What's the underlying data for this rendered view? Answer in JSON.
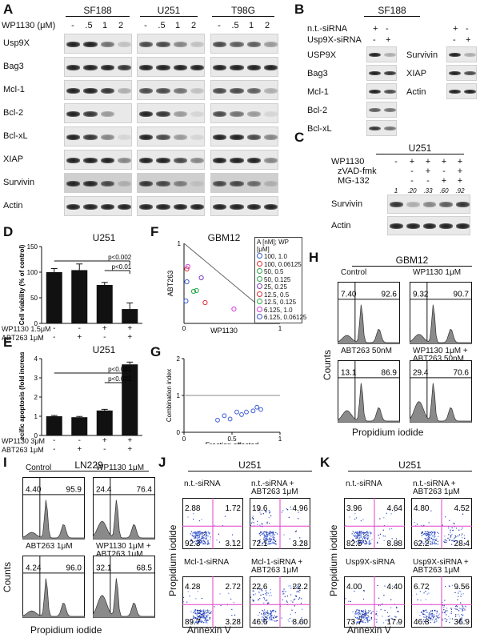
{
  "panels": {
    "A": {
      "letter": "A",
      "cell_lines": [
        "SF188",
        "U251",
        "T98G"
      ],
      "dose_label": "WP1130 (μM)",
      "doses": [
        "-",
        ".5",
        "1",
        "2"
      ],
      "proteins": [
        "Usp9X",
        "Bag3",
        "Mcl-1",
        "Bcl-2",
        "Bcl-xL",
        "XIAP",
        "Survivin",
        "Actin"
      ]
    },
    "B": {
      "letter": "B",
      "title": "SF188",
      "cond1": "n.t.-siRNA",
      "cond2": "Usp9X-siRNA",
      "cond1_signs": [
        "+",
        "-"
      ],
      "cond2_signs": [
        "-",
        "+"
      ],
      "left_proteins": [
        "USP9X",
        "Bag3",
        "Mcl-1",
        "Bcl-2",
        "Bcl-xL"
      ],
      "right_proteins": [
        "Survivin",
        "XIAP",
        "Actin"
      ]
    },
    "C": {
      "letter": "C",
      "title": "U251",
      "treatments": [
        {
          "label": "WP1130",
          "signs": [
            "-",
            "+",
            "+",
            "+",
            "+"
          ]
        },
        {
          "label": "zVAD-fmk",
          "signs": [
            "",
            "-",
            "+",
            "-",
            "+"
          ]
        },
        {
          "label": "MG-132",
          "signs": [
            "",
            "-",
            "-",
            "+",
            "+"
          ]
        }
      ],
      "quant": [
        "1",
        ".20",
        ".33",
        ".60",
        ".92"
      ],
      "proteins": [
        "Survivin",
        "Actin"
      ]
    },
    "D": {
      "letter": "D",
      "title": "U251",
      "ylabel": "Cell viability (% of control)",
      "yticks": [
        "0",
        "50",
        "100",
        "150"
      ],
      "pvals": [
        "p<0.002",
        "p<0.01"
      ],
      "row1_label": "WP1130 1.5μM",
      "row1_signs": [
        "-",
        "-",
        "+",
        "+"
      ],
      "row2_label": "ABT263 1μM",
      "row2_signs": [
        "-",
        "+",
        "-",
        "+"
      ]
    },
    "E": {
      "letter": "E",
      "title": "U251",
      "ylabel": "Specific apoptosis (fold increase)",
      "yticks": [
        "0",
        "1",
        "2",
        "3",
        "4"
      ],
      "pvals": [
        "p<0.001",
        "p<0.001"
      ],
      "row1_label": "WP1130 3μM",
      "row1_signs": [
        "-",
        "-",
        "+",
        "+"
      ],
      "row2_label": "ABT263 1μM",
      "row2_signs": [
        "-",
        "+",
        "-",
        "+"
      ]
    },
    "F": {
      "letter": "F",
      "title": "GBM12",
      "xlabel": "WP1130",
      "ylabel": "ABT263",
      "tick0": "0",
      "tick1": "1",
      "legend_title": "A [nM]; WP [μM]",
      "legend": [
        "100, 1.0",
        "100, 0.06125",
        "50, 0.5",
        "50, 0.125",
        "25, 0.25",
        "12.5, 0.5",
        "12.5, 0.125",
        "6.125, 1.0",
        "6.125, 0.06125"
      ]
    },
    "G": {
      "letter": "G",
      "xlabel": "Fraction affected",
      "ylabel": "Combination index",
      "xticks": [
        "0",
        "0.5",
        "1"
      ],
      "yticks": [
        "0",
        "1",
        "2"
      ]
    },
    "H": {
      "letter": "H",
      "title": "GBM12",
      "ylabel": "Counts",
      "xlabel": "Propidium iodide",
      "plots": [
        {
          "label": "Control",
          "left": "7.40",
          "right": "92.6"
        },
        {
          "label": "WP1130 1μM",
          "left": "9.32",
          "right": "90.7"
        },
        {
          "label": "ABT263 50nM",
          "left": "13.1",
          "right": "86.9"
        },
        {
          "label": "WP1130 1μM + ABT263 50nM",
          "left": "29.4",
          "right": "70.6"
        }
      ]
    },
    "I": {
      "letter": "I",
      "title": "LN229",
      "ylabel": "Counts",
      "xlabel": "Propidium iodide",
      "plots": [
        {
          "label": "Control",
          "left": "4.40",
          "right": "95.9"
        },
        {
          "label": "WP1130 1μM",
          "left": "24.4",
          "right": "76.4"
        },
        {
          "label": "ABT263 1μM",
          "left": "4.24",
          "right": "96.0"
        },
        {
          "label": "WP1130 1μM + ABT263 1μM",
          "left": "32.1",
          "right": "68.5"
        }
      ]
    },
    "J": {
      "letter": "J",
      "title": "U251",
      "ylabel": "Propidium iodide",
      "xlabel": "Annexin V",
      "plots": [
        {
          "label": "n.t.-siRNA",
          "q": [
            "2.88",
            "1.72",
            "92.3",
            "3.12"
          ]
        },
        {
          "label": "n.t.-siRNA + ABT263 1μM",
          "q": [
            "19.6",
            "4.96",
            "72.1",
            "3.28"
          ]
        },
        {
          "label": "Mcl-1-siRNA",
          "q": [
            "4.28",
            "2.72",
            "89.7",
            "3.28"
          ]
        },
        {
          "label": "Mcl-1-siRNA + ABT263 1μM",
          "q": [
            "22.6",
            "22.2",
            "46.6",
            "8.60"
          ]
        }
      ]
    },
    "K": {
      "letter": "K",
      "title": "U251",
      "ylabel": "Propidium iodide",
      "xlabel": "Annexin V",
      "plots": [
        {
          "label": "n.t.-siRNA",
          "q": [
            "3.96",
            "4.64",
            "82.5",
            "8.88"
          ]
        },
        {
          "label": "n.t.-siRNA + ABT263 1μM",
          "q": [
            "4.80",
            "4.52",
            "62.2",
            "28.4"
          ]
        },
        {
          "label": "Usp9X-siRNA",
          "q": [
            "4.00",
            "4.40",
            "73.7",
            "17.9"
          ]
        },
        {
          "label": "Usp9X-siRNA + ABT263 1μM",
          "q": [
            "6.72",
            "9.56",
            "46.8",
            "36.9"
          ]
        }
      ]
    }
  },
  "chart_data": [
    {
      "type": "bar",
      "title": "U251",
      "categories": [
        "control",
        "ABT263",
        "WP1130",
        "WP1130+ABT263"
      ],
      "values": [
        100,
        104,
        75,
        28
      ],
      "errors": [
        7,
        12,
        5,
        12
      ],
      "ylabel": "Cell viability (% of control)",
      "ylim": [
        0,
        150
      ]
    },
    {
      "type": "bar",
      "title": "U251",
      "categories": [
        "control",
        "ABT263",
        "WP1130",
        "WP1130+ABT263"
      ],
      "values": [
        1.0,
        0.95,
        1.3,
        3.7
      ],
      "errors": [
        0.04,
        0.04,
        0.06,
        0.12
      ],
      "ylabel": "Specific apoptosis (fold increase)",
      "ylim": [
        0,
        4
      ]
    },
    {
      "type": "scatter",
      "title": "GBM12",
      "xlabel": "WP1130",
      "ylabel": "ABT263",
      "xlim": [
        0,
        1
      ],
      "ylim": [
        0,
        1
      ],
      "points": [
        {
          "x": 0.03,
          "y": 0.52,
          "color": "#3b5bd6"
        },
        {
          "x": 0.03,
          "y": 0.68,
          "color": "#e0303a"
        },
        {
          "x": 0.1,
          "y": 0.4,
          "color": "#2aa84a"
        },
        {
          "x": 0.13,
          "y": 0.41,
          "color": "#2aa84a"
        },
        {
          "x": 0.18,
          "y": 0.57,
          "color": "#7a3fc4"
        },
        {
          "x": 0.22,
          "y": 0.26,
          "color": "#e0303a"
        },
        {
          "x": 0.02,
          "y": 0.28,
          "color": "#3b5bd6"
        },
        {
          "x": 0.04,
          "y": 0.71,
          "color": "#d23cd2"
        },
        {
          "x": 0.52,
          "y": 0.18,
          "color": "#d23cd2"
        }
      ]
    },
    {
      "type": "scatter",
      "xlabel": "Fraction affected",
      "ylabel": "Combination index",
      "xlim": [
        0,
        1
      ],
      "ylim": [
        0,
        2
      ],
      "points": [
        {
          "x": 0.35,
          "y": 0.33
        },
        {
          "x": 0.42,
          "y": 0.45
        },
        {
          "x": 0.48,
          "y": 0.36
        },
        {
          "x": 0.55,
          "y": 0.55
        },
        {
          "x": 0.6,
          "y": 0.48
        },
        {
          "x": 0.65,
          "y": 0.55
        },
        {
          "x": 0.72,
          "y": 0.58
        },
        {
          "x": 0.76,
          "y": 0.68
        },
        {
          "x": 0.8,
          "y": 0.62
        }
      ]
    }
  ]
}
